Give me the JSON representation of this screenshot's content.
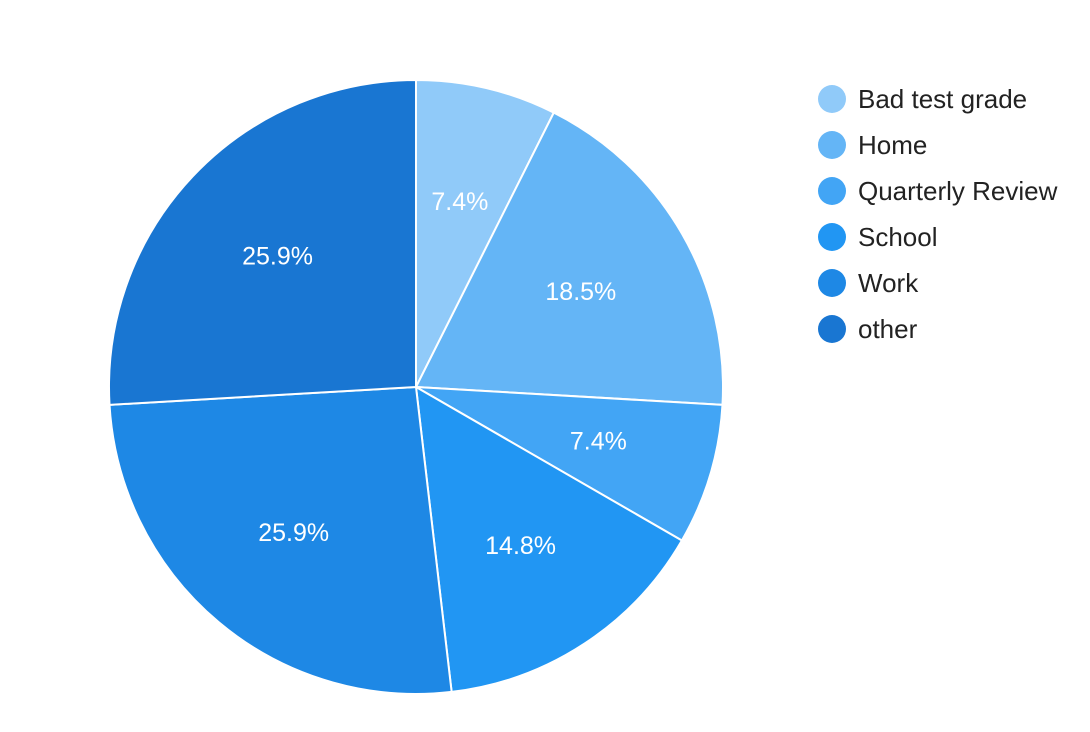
{
  "chart_data": {
    "type": "pie",
    "title": "",
    "legend_position": "right",
    "categories": [
      "Bad test grade",
      "Home",
      "Quarterly Review",
      "School",
      "Work",
      "other"
    ],
    "values": [
      7.4,
      18.5,
      7.4,
      14.8,
      25.9,
      25.9
    ],
    "value_labels": [
      "7.4%",
      "18.5%",
      "7.4%",
      "14.8%",
      "25.9%",
      "25.9%"
    ],
    "colors": [
      "#90caf9",
      "#64b5f6",
      "#42a5f5",
      "#2196f3",
      "#1e88e5",
      "#1976d2"
    ],
    "start_angle_deg": 0,
    "direction": "clockwise"
  }
}
